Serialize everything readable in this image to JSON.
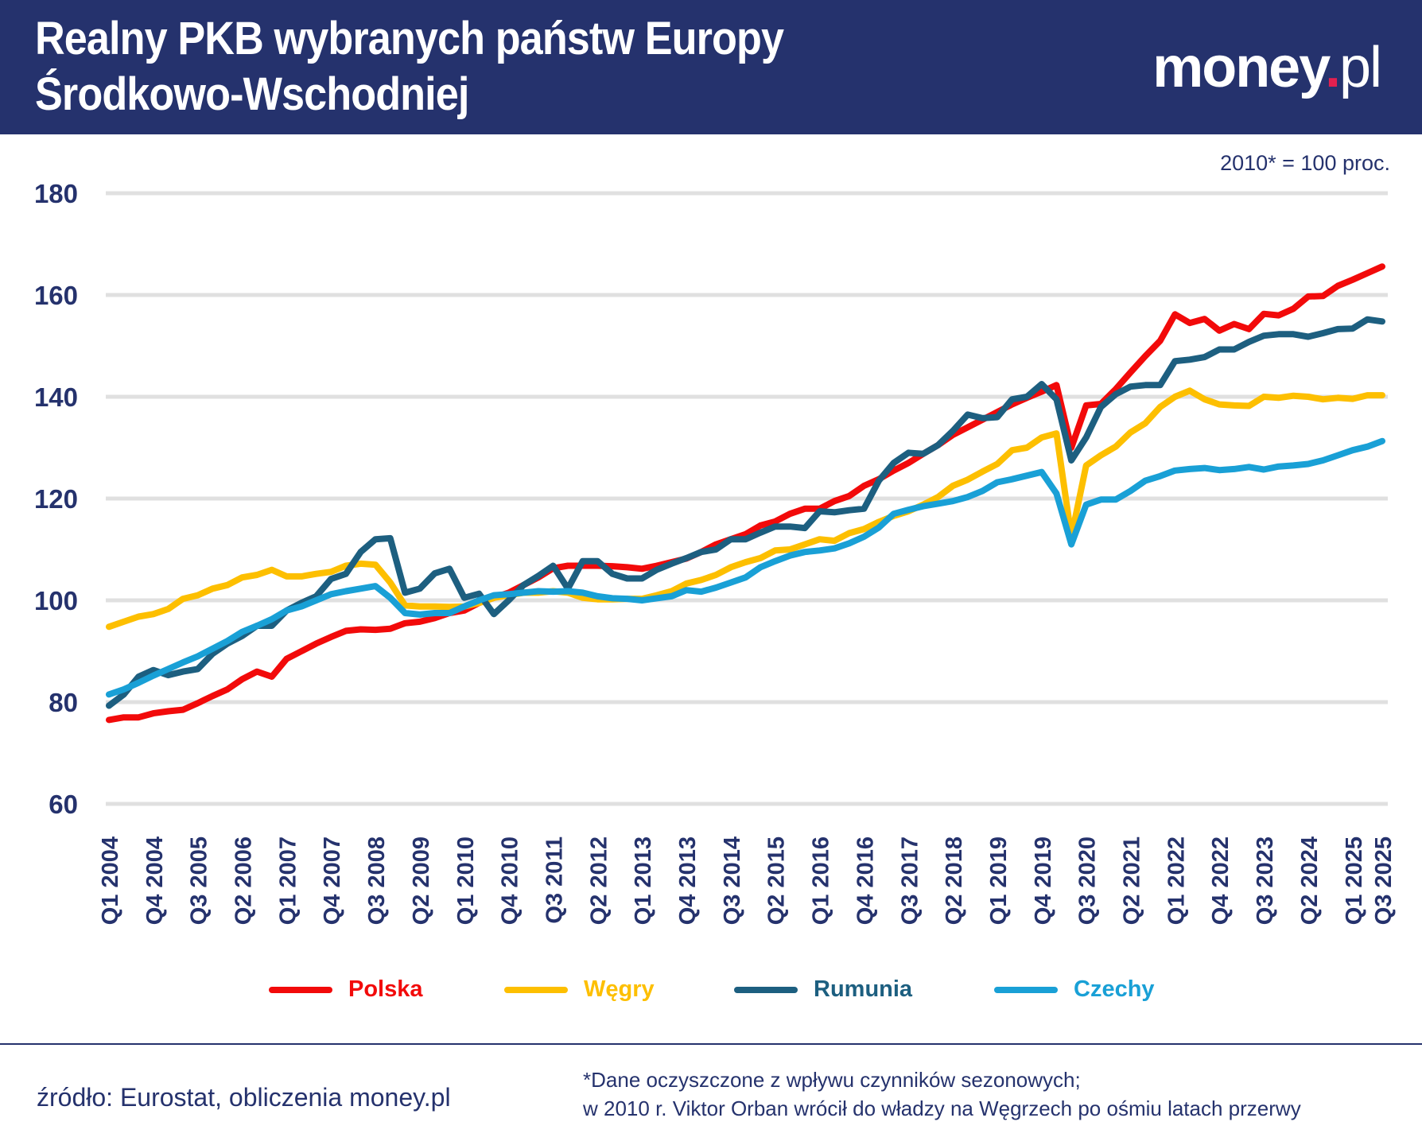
{
  "header": {
    "title_line1": "Realny PKB wybranych państw Europy",
    "title_line2": "Środkowo-Wschodniej",
    "logo_text": "money.pl",
    "bg_color": "#25326d"
  },
  "chart_data": {
    "type": "line",
    "title": "Realny PKB wybranych państw Europy Środkowo-Wschodniej",
    "unit_note": "2010* = 100 proc.",
    "ylim": [
      60,
      180
    ],
    "yticks": [
      60,
      80,
      100,
      120,
      140,
      160,
      180
    ],
    "grid": true,
    "legend_position": "bottom",
    "x": [
      "Q1 2004",
      "Q2 2004",
      "Q3 2004",
      "Q4 2004",
      "Q1 2005",
      "Q2 2005",
      "Q3 2005",
      "Q4 2005",
      "Q1 2006",
      "Q2 2006",
      "Q3 2006",
      "Q4 2006",
      "Q1 2007",
      "Q2 2007",
      "Q3 2007",
      "Q4 2007",
      "Q1 2008",
      "Q2 2008",
      "Q3 2008",
      "Q4 2008",
      "Q1 2009",
      "Q2 2009",
      "Q3 2009",
      "Q4 2009",
      "Q1 2010",
      "Q2 2010",
      "Q3 2010",
      "Q4 2010",
      "Q1 2011",
      "Q2 2011",
      "Q3 2011",
      "Q4 2011",
      "Q1 2012",
      "Q2 2012",
      "Q3 2012",
      "Q4 2012",
      "Q1 2013",
      "Q2 2013",
      "Q3 2013",
      "Q4 2013",
      "Q1 2014",
      "Q2 2014",
      "Q3 2014",
      "Q4 2014",
      "Q1 2015",
      "Q2 2015",
      "Q3 2015",
      "Q4 2015",
      "Q1 2016",
      "Q2 2016",
      "Q3 2016",
      "Q4 2016",
      "Q1 2017",
      "Q2 2017",
      "Q3 2017",
      "Q4 2017",
      "Q1 2018",
      "Q2 2018",
      "Q3 2018",
      "Q4 2018",
      "Q1 2019",
      "Q2 2019",
      "Q3 2019",
      "Q4 2019",
      "Q1 2020",
      "Q2 2020",
      "Q3 2020",
      "Q4 2020",
      "Q1 2021",
      "Q2 2021",
      "Q3 2021",
      "Q4 2021",
      "Q1 2022",
      "Q2 2022",
      "Q3 2022",
      "Q4 2022",
      "Q1 2023",
      "Q2 2023",
      "Q3 2023",
      "Q4 2023",
      "Q1 2024",
      "Q2 2024",
      "Q3 2024",
      "Q4 2024",
      "Q1 2025",
      "Q2 2025",
      "Q3 2025"
    ],
    "x_tick_labels": [
      "Q1 2004",
      "Q4 2004",
      "Q3 2005",
      "Q2 2006",
      "Q1 2007",
      "Q4 2007",
      "Q3 2008",
      "Q2 2009",
      "Q1 2010",
      "Q4 2010",
      "Q3 2011",
      "Q2 2012",
      "Q1 2013",
      "Q4 2013",
      "Q3 2014",
      "Q2 2015",
      "Q1 2016",
      "Q4 2016",
      "Q3 2017",
      "Q2 2018",
      "Q1 2019",
      "Q4 2019",
      "Q3 2020",
      "Q2 2021",
      "Q1 2022",
      "Q4 2022",
      "Q3 2023",
      "Q2 2024",
      "Q1 2025",
      "Q3 2025"
    ],
    "series": [
      {
        "name": "Polska",
        "color": "#f20a0a",
        "values": [
          76.5,
          77,
          77,
          77.8,
          78.2,
          78.5,
          79.8,
          81.2,
          82.5,
          84.5,
          86,
          85,
          88.5,
          90,
          91.5,
          92.8,
          94,
          94.3,
          94.2,
          94.4,
          95.5,
          95.8,
          96.5,
          97.5,
          98,
          99.5,
          100.5,
          101.5,
          103,
          104.5,
          106.3,
          106.8,
          106.8,
          106.8,
          106.7,
          106.5,
          106.2,
          106.8,
          107.5,
          108.2,
          109.5,
          111,
          112,
          113,
          114.7,
          115.5,
          117,
          118,
          118,
          119.5,
          120.5,
          122.5,
          123.8,
          125.5,
          127,
          128.8,
          130.5,
          132.5,
          134,
          135.5,
          137,
          138.5,
          139.8,
          141,
          142.3,
          130,
          138.3,
          138.6,
          141.5,
          144.8,
          148,
          151,
          156.2,
          154.5,
          155.3,
          153,
          154.3,
          153.3,
          156.3,
          156,
          157.3,
          159.7,
          159.8,
          161.8,
          163,
          164.3,
          165.6
        ]
      },
      {
        "name": "Węgry",
        "color": "#fdbf00",
        "values": [
          94.8,
          95.8,
          96.8,
          97.3,
          98.3,
          100.3,
          101,
          102.3,
          103,
          104.5,
          105,
          106,
          104.7,
          104.7,
          105.2,
          105.6,
          106.8,
          107.2,
          107,
          103.5,
          99,
          98.8,
          98.8,
          98.7,
          98.8,
          99.5,
          100.5,
          101,
          101.5,
          101.5,
          101.8,
          101.5,
          100.5,
          100.2,
          100.2,
          100.3,
          100.3,
          101,
          101.8,
          103.3,
          104,
          105,
          106.5,
          107.5,
          108.3,
          109.8,
          110,
          111,
          112,
          111.7,
          113.2,
          114,
          115.4,
          116.6,
          117.5,
          118.8,
          120.3,
          122.5,
          123.7,
          125.3,
          126.8,
          129.5,
          130,
          132,
          132.8,
          112.5,
          126.5,
          128.5,
          130.2,
          133,
          134.8,
          138,
          140,
          141.2,
          139.5,
          138.5,
          138.3,
          138.2,
          140,
          139.8,
          140.2,
          140,
          139.5,
          139.8,
          139.6,
          140.3,
          140.3
        ]
      },
      {
        "name": "Rumunia",
        "color": "#1d5f80",
        "values": [
          79.3,
          81.5,
          85,
          86.3,
          85.3,
          86,
          86.5,
          89.5,
          91.5,
          93,
          95,
          95,
          98,
          99.5,
          100.8,
          104.2,
          105.2,
          109.5,
          112,
          112.2,
          101.5,
          102.3,
          105.3,
          106.2,
          100.5,
          101.3,
          97.3,
          100,
          103,
          104.8,
          106.8,
          102.3,
          107.7,
          107.7,
          105.2,
          104.3,
          104.3,
          106,
          107.2,
          108.3,
          109.5,
          110,
          112,
          112,
          113.3,
          114.5,
          114.5,
          114.2,
          117.5,
          117.3,
          117.7,
          118,
          123.5,
          127,
          129,
          128.8,
          130.5,
          133.3,
          136.5,
          135.8,
          136,
          139.5,
          140,
          142.5,
          139.5,
          127.5,
          132,
          138,
          140.5,
          142,
          142.3,
          142.3,
          147,
          147.3,
          147.8,
          149.3,
          149.3,
          150.8,
          152,
          152.3,
          152.3,
          151.8,
          152.5,
          153.3,
          153.4,
          155.2,
          154.8
        ]
      },
      {
        "name": "Czechy",
        "color": "#19a0d6",
        "values": [
          81.5,
          82.5,
          83.8,
          85.2,
          86.5,
          87.8,
          89,
          90.5,
          92,
          93.8,
          95,
          96.3,
          98,
          98.8,
          100,
          101.2,
          101.8,
          102.3,
          102.8,
          100.5,
          97.5,
          97.2,
          97.5,
          97.5,
          98.8,
          100,
          101,
          101.2,
          101.5,
          101.8,
          101.7,
          101.8,
          101.5,
          100.8,
          100.4,
          100.3,
          100,
          100.4,
          100.8,
          102,
          101.7,
          102.5,
          103.5,
          104.5,
          106.5,
          107.7,
          108.8,
          109.5,
          109.8,
          110.2,
          111.2,
          112.5,
          114.3,
          117,
          117.8,
          118.5,
          119,
          119.5,
          120.3,
          121.5,
          123.2,
          123.8,
          124.5,
          125.2,
          121,
          111,
          118.8,
          119.8,
          119.8,
          121.5,
          123.5,
          124.4,
          125.5,
          125.8,
          126,
          125.6,
          125.8,
          126.2,
          125.7,
          126.3,
          126.5,
          126.8,
          127.5,
          128.5,
          129.5,
          130.2,
          131.3
        ]
      }
    ]
  },
  "footer": {
    "source": "źródło: Eurostat, obliczenia money.pl",
    "note_line1": "*Dane oczyszczone z wpływu czynników sezonowych;",
    "note_line2": "w 2010 r. Viktor  Orban wrócił do władzy na Węgrzech po ośmiu latach przerwy"
  }
}
